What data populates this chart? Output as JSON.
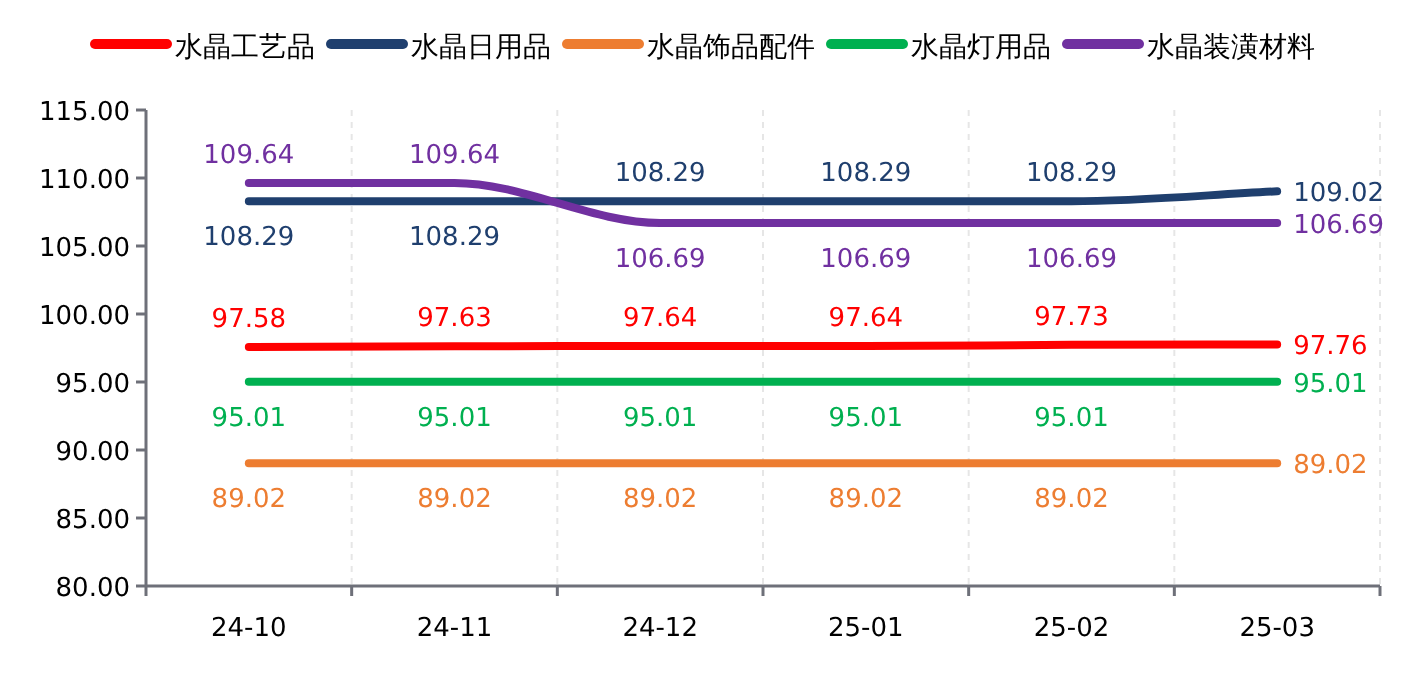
{
  "chart_data": {
    "type": "line",
    "categories": [
      "24-10",
      "24-11",
      "24-12",
      "25-01",
      "25-02",
      "25-03"
    ],
    "series": [
      {
        "name": "水晶工艺品",
        "color": "#ff0000",
        "values": [
          97.58,
          97.63,
          97.64,
          97.64,
          97.73,
          97.76
        ]
      },
      {
        "name": "水晶日用品",
        "color": "#1f3f6e",
        "values": [
          108.29,
          108.29,
          108.29,
          108.29,
          108.29,
          109.02
        ]
      },
      {
        "name": "水晶饰品配件",
        "color": "#ed7d31",
        "values": [
          89.02,
          89.02,
          89.02,
          89.02,
          89.02,
          89.02
        ]
      },
      {
        "name": "水晶灯用品",
        "color": "#00b050",
        "values": [
          95.01,
          95.01,
          95.01,
          95.01,
          95.01,
          95.01
        ]
      },
      {
        "name": "水晶装潢材料",
        "color": "#7030a0",
        "values": [
          109.64,
          109.64,
          106.69,
          106.69,
          106.69,
          106.69
        ]
      }
    ],
    "ylim": [
      80,
      115
    ],
    "yticks": [
      {
        "value": 80,
        "label": "80.00"
      },
      {
        "value": 85,
        "label": "85.00"
      },
      {
        "value": 90,
        "label": "90.00"
      },
      {
        "value": 95,
        "label": "95.00"
      },
      {
        "value": 100,
        "label": "100.00"
      },
      {
        "value": 105,
        "label": "105.00"
      },
      {
        "value": 110,
        "label": "110.00"
      },
      {
        "value": 115,
        "label": "115.00"
      }
    ],
    "grid": "x",
    "legend": "top",
    "data_labels": true,
    "marker": "none",
    "line_style": "solid"
  }
}
